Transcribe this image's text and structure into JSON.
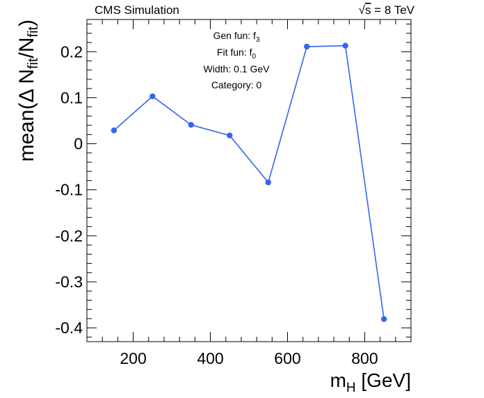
{
  "chart_data": {
    "type": "line",
    "header_left": "CMS Simulation",
    "header_right_sqrt": "√",
    "header_right_s": "s",
    "header_right_rest": " = 8 TeV",
    "info": {
      "gen_prefix": "Gen fun: f",
      "gen_sub": "3",
      "fit_prefix": "Fit fun: f",
      "fit_sub": "0",
      "width": "Width: 0.1 GeV",
      "category": "Category: 0"
    },
    "xlabel_main": "m",
    "xlabel_sub": "H",
    "xlabel_unit": " [GeV]",
    "ylabel_pre": "mean(Δ N",
    "ylabel_sub1": "fit",
    "ylabel_mid": "/N",
    "ylabel_sub2": "fit",
    "ylabel_post": ")",
    "xlim": [
      80,
      920
    ],
    "ylim": [
      -0.43,
      0.27
    ],
    "x_ticks": [
      {
        "value": 200,
        "label": "200"
      },
      {
        "value": 400,
        "label": "400"
      },
      {
        "value": 600,
        "label": "600"
      },
      {
        "value": 800,
        "label": "800"
      }
    ],
    "y_ticks": [
      {
        "value": 0.2,
        "label": "0.2"
      },
      {
        "value": 0.1,
        "label": "0.1"
      },
      {
        "value": 0,
        "label": "0"
      },
      {
        "value": -0.1,
        "label": "-0.1"
      },
      {
        "value": -0.2,
        "label": "-0.2"
      },
      {
        "value": -0.3,
        "label": "-0.3"
      },
      {
        "value": -0.4,
        "label": "-0.4"
      }
    ],
    "x": [
      150,
      250,
      350,
      450,
      550,
      650,
      750,
      850
    ],
    "y": [
      0.029,
      0.103,
      0.041,
      0.018,
      -0.084,
      0.211,
      0.213,
      -0.381
    ],
    "series_color": "#3366ee"
  }
}
